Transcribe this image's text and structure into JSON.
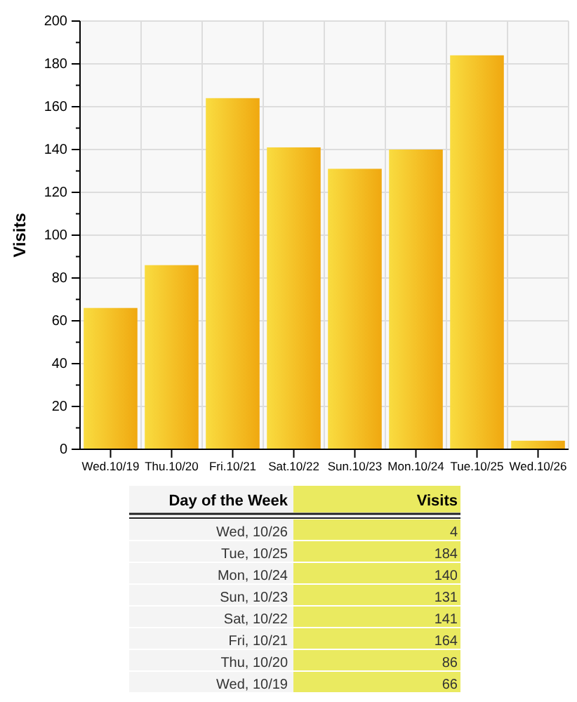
{
  "chart_data": [
    {
      "type": "bar",
      "ylabel": "Visits",
      "categories": [
        "Wed.10/19",
        "Thu.10/20",
        "Fri.10/21",
        "Sat.10/22",
        "Sun.10/23",
        "Mon.10/24",
        "Tue.10/25",
        "Wed.10/26"
      ],
      "values": [
        66,
        86,
        164,
        141,
        131,
        140,
        184,
        4
      ],
      "color": "#f0a810",
      "ylim": [
        0,
        200
      ],
      "yticks": [
        0,
        {
          "value": 10,
          "label": null
        },
        20,
        {
          "value": 30,
          "label": null
        },
        40,
        {
          "value": 50,
          "label": null
        },
        60,
        {
          "value": 70,
          "label": null
        },
        80,
        {
          "value": 90,
          "label": null
        },
        100,
        {
          "value": 110,
          "label": null
        },
        120,
        {
          "value": 130,
          "label": null
        },
        140,
        {
          "value": 150,
          "label": null
        },
        160,
        {
          "value": 170,
          "label": null
        },
        180,
        {
          "value": 190,
          "label": null
        },
        200
      ],
      "grid": true
    },
    {
      "type": "other",
      "xlabel": "Day of the Week",
      "ylabel": "Visits",
      "categories": [
        "Wed, 10/26",
        "Tue, 10/25",
        "Mon, 10/24",
        "Sun, 10/23",
        "Sat, 10/22",
        "Fri, 10/21",
        "Thu, 10/20",
        "Wed, 10/19"
      ],
      "values": [
        4,
        184,
        140,
        131,
        141,
        164,
        86,
        66
      ],
      "data_labels": true
    }
  ]
}
